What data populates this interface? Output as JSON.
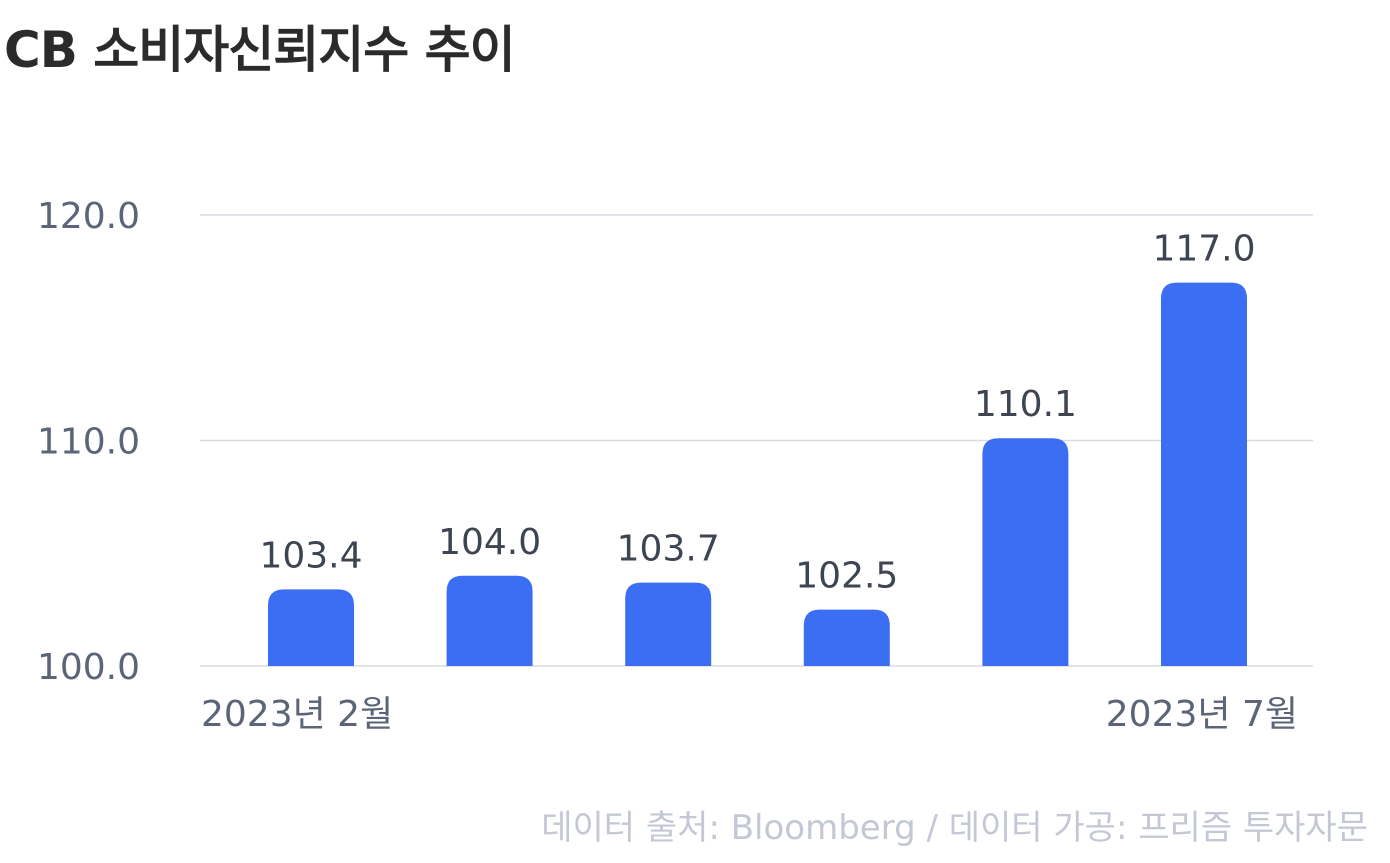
{
  "title": "CB 소비자신뢰지수 추이",
  "source": "데이터 출처: Bloomberg / 데이터 가공: 프리즘 투자자문",
  "colors": {
    "bar": "#3b6ef2",
    "grid": "#d9dce2",
    "axis_text": "#5b6577",
    "value_text": "#3d4552",
    "title": "#2b2b2b",
    "source": "#c3c8d4"
  },
  "chart_data": {
    "type": "bar",
    "title": "CB 소비자신뢰지수 추이",
    "categories": [
      "2023년 2월",
      "",
      "",
      "",
      "",
      "2023년 7월"
    ],
    "values": [
      103.4,
      104.0,
      103.7,
      102.5,
      110.1,
      117.0
    ],
    "value_labels": [
      "103.4",
      "104.0",
      "103.7",
      "102.5",
      "110.1",
      "117.0"
    ],
    "y_ticks": [
      100.0,
      110.0,
      120.0
    ],
    "y_tick_labels": [
      "100.0",
      "110.0",
      "120.0"
    ],
    "ylim": [
      100,
      120
    ],
    "grid": true,
    "legend": "none"
  }
}
